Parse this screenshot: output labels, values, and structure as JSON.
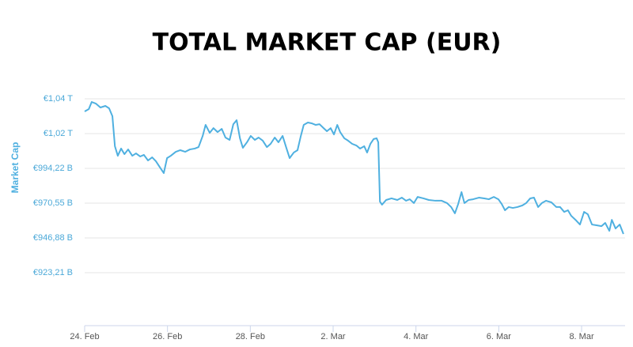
{
  "chart_data": {
    "type": "line",
    "title": "TOTAL MARKET CAP (EUR)",
    "y_label": "Market Cap",
    "x": [
      0,
      0.1,
      0.17,
      0.27,
      0.38,
      0.5,
      0.59,
      0.67,
      0.73,
      0.8,
      0.88,
      0.96,
      1.05,
      1.15,
      1.24,
      1.34,
      1.43,
      1.53,
      1.63,
      1.72,
      1.82,
      1.91,
      1.99,
      2.08,
      2.2,
      2.31,
      2.43,
      2.54,
      2.66,
      2.75,
      2.85,
      2.92,
      3.02,
      3.11,
      3.21,
      3.31,
      3.4,
      3.5,
      3.59,
      3.67,
      3.75,
      3.82,
      3.92,
      4.01,
      4.11,
      4.2,
      4.3,
      4.4,
      4.49,
      4.59,
      4.68,
      4.78,
      4.87,
      4.95,
      5.05,
      5.14,
      5.22,
      5.29,
      5.39,
      5.48,
      5.58,
      5.67,
      5.77,
      5.85,
      5.94,
      6.02,
      6.1,
      6.17,
      6.27,
      6.36,
      6.46,
      6.56,
      6.65,
      6.75,
      6.82,
      6.9,
      6.98,
      7.05,
      7.09,
      7.13,
      7.18,
      7.28,
      7.41,
      7.55,
      7.66,
      7.76,
      7.85,
      7.95,
      8.04,
      8.18,
      8.31,
      8.47,
      8.62,
      8.75,
      8.85,
      8.94,
      9.02,
      9.1,
      9.17,
      9.27,
      9.38,
      9.52,
      9.65,
      9.76,
      9.88,
      9.99,
      10.07,
      10.15,
      10.24,
      10.34,
      10.45,
      10.57,
      10.66,
      10.76,
      10.85,
      10.95,
      11.04,
      11.14,
      11.27,
      11.39,
      11.48,
      11.58,
      11.67,
      11.75,
      11.87,
      11.96,
      12.06,
      12.15,
      12.25,
      12.36,
      12.48,
      12.57,
      12.67,
      12.73,
      12.82,
      12.92,
      13.01
    ],
    "series": [
      {
        "name": "Market Cap",
        "color": "#4fb0e0",
        "values": [
          1032.95,
          1034.57,
          1039.41,
          1038.33,
          1035.64,
          1036.72,
          1035.1,
          1029.7,
          1009.3,
          1002.8,
          1007.7,
          1003.9,
          1007.1,
          1002.8,
          1004.4,
          1002.3,
          1003.4,
          999.6,
          1001.7,
          999.1,
          994.8,
          991.0,
          1001.2,
          1002.8,
          1005.5,
          1006.6,
          1005.5,
          1007.1,
          1007.7,
          1008.7,
          1016.3,
          1023.8,
          1018.4,
          1021.6,
          1018.9,
          1021.1,
          1015.2,
          1013.6,
          1024.3,
          1027.0,
          1014.7,
          1008.2,
          1012.0,
          1016.3,
          1013.6,
          1015.2,
          1013.1,
          1008.7,
          1010.9,
          1015.2,
          1012.0,
          1016.3,
          1008.2,
          1001.2,
          1005.0,
          1006.6,
          1016.3,
          1023.8,
          1025.4,
          1024.9,
          1023.8,
          1024.3,
          1021.6,
          1019.5,
          1021.6,
          1017.3,
          1023.8,
          1018.9,
          1014.7,
          1013.1,
          1010.9,
          1009.8,
          1007.7,
          1009.3,
          1005.0,
          1010.9,
          1014.2,
          1014.7,
          1012.0,
          971.6,
          969.5,
          972.7,
          973.8,
          972.7,
          974.3,
          972.2,
          973.2,
          970.6,
          974.8,
          973.8,
          972.7,
          972.2,
          972.2,
          970.6,
          967.9,
          963.6,
          970.0,
          978.1,
          970.6,
          972.7,
          973.2,
          974.3,
          973.8,
          973.2,
          974.8,
          973.2,
          970.0,
          965.7,
          967.9,
          967.3,
          967.9,
          969.0,
          970.6,
          973.8,
          974.3,
          967.9,
          970.6,
          972.2,
          971.1,
          967.9,
          967.9,
          964.6,
          965.7,
          961.9,
          958.7,
          956.0,
          964.6,
          963.0,
          956.0,
          955.5,
          954.9,
          957.1,
          951.7,
          959.2,
          953.3,
          956.0,
          949.6
        ]
      }
    ],
    "xlim": [
      0,
      13.05
    ],
    "xticks": [
      {
        "value": 0,
        "label": "24. Feb"
      },
      {
        "value": 2,
        "label": "26. Feb"
      },
      {
        "value": 4,
        "label": "28. Feb"
      },
      {
        "value": 6,
        "label": "2. Mar"
      },
      {
        "value": 8,
        "label": "4. Mar"
      },
      {
        "value": 10,
        "label": "6. Mar"
      },
      {
        "value": 12,
        "label": "8. Mar"
      }
    ],
    "ylim": [
      887.17,
      1049.63
    ],
    "yticks": [
      {
        "value": 923.21,
        "label": "€923,21 B"
      },
      {
        "value": 946.88,
        "label": "€946,88 B"
      },
      {
        "value": 970.55,
        "label": "€970,55 B"
      },
      {
        "value": 994.22,
        "label": "€994,22 B"
      },
      {
        "value": 1017.89,
        "label": "€1,02 T"
      },
      {
        "value": 1041.56,
        "label": "€1,04 T"
      }
    ],
    "grid": true
  }
}
